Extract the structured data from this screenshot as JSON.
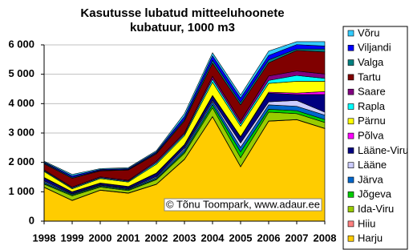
{
  "chart_data": {
    "type": "stacked-area",
    "title": "Kasutusse lubatud mitteeluhoonete kubatuur, 1000 m3",
    "annotation": "© Tõnu Toompark, www.adaur.ee",
    "x": [
      1998,
      1999,
      2000,
      2001,
      2002,
      2003,
      2004,
      2005,
      2006,
      2007,
      2008
    ],
    "ylim": [
      0,
      6000
    ],
    "yticks": [
      0,
      {
        "value": 1000,
        "label": "1 000"
      },
      {
        "value": 2000,
        "label": "2 000"
      },
      {
        "value": 3000,
        "label": "3 000"
      },
      {
        "value": 4000,
        "label": "4 000"
      },
      {
        "value": 5000,
        "label": "5 000"
      },
      {
        "value": 6000,
        "label": "6 000"
      }
    ],
    "grid": true,
    "legend": "right",
    "series": [
      {
        "name": "Harju",
        "color": "#ffcc00",
        "values": [
          1150,
          700,
          1050,
          950,
          1250,
          2100,
          3550,
          1850,
          3400,
          3450,
          3150
        ]
      },
      {
        "name": "Hiiu",
        "color": "#ff8080",
        "values": [
          10,
          10,
          10,
          10,
          10,
          10,
          10,
          10,
          10,
          10,
          10
        ]
      },
      {
        "name": "Ida-Viru",
        "color": "#99cc00",
        "values": [
          100,
          150,
          100,
          80,
          150,
          200,
          300,
          300,
          300,
          200,
          200
        ]
      },
      {
        "name": "Jõgeva",
        "color": "#00cc00",
        "values": [
          30,
          30,
          30,
          30,
          30,
          50,
          100,
          200,
          100,
          100,
          100
        ]
      },
      {
        "name": "Järva",
        "color": "#0066cc",
        "values": [
          50,
          30,
          30,
          30,
          50,
          80,
          100,
          150,
          150,
          150,
          150
        ]
      },
      {
        "name": "Lääne",
        "color": "#ccccff",
        "values": [
          30,
          20,
          20,
          20,
          30,
          50,
          50,
          150,
          100,
          200,
          100
        ]
      },
      {
        "name": "Lääne-Viru",
        "color": "#000080",
        "values": [
          100,
          50,
          50,
          50,
          100,
          100,
          150,
          200,
          300,
          200,
          600
        ]
      },
      {
        "name": "Põlva",
        "color": "#ff00ff",
        "values": [
          20,
          10,
          10,
          10,
          20,
          20,
          20,
          20,
          30,
          50,
          100
        ]
      },
      {
        "name": "Pärnu",
        "color": "#ffff00",
        "values": [
          200,
          100,
          150,
          150,
          300,
          300,
          450,
          350,
          300,
          400,
          350
        ]
      },
      {
        "name": "Rapla",
        "color": "#00ffff",
        "values": [
          30,
          30,
          30,
          30,
          50,
          50,
          100,
          80,
          100,
          200,
          100
        ]
      },
      {
        "name": "Saare",
        "color": "#800080",
        "values": [
          30,
          30,
          30,
          30,
          50,
          50,
          100,
          100,
          150,
          150,
          150
        ]
      },
      {
        "name": "Tartu",
        "color": "#800000",
        "values": [
          200,
          300,
          200,
          350,
          250,
          400,
          450,
          550,
          450,
          700,
          750
        ]
      },
      {
        "name": "Valga",
        "color": "#008080",
        "values": [
          30,
          30,
          20,
          20,
          30,
          50,
          100,
          80,
          100,
          50,
          100
        ]
      },
      {
        "name": "Viljandi",
        "color": "#0000ff",
        "values": [
          30,
          50,
          30,
          30,
          40,
          100,
          150,
          150,
          150,
          150,
          100
        ]
      },
      {
        "name": "Võru",
        "color": "#33ccff",
        "values": [
          30,
          50,
          30,
          30,
          40,
          100,
          100,
          100,
          150,
          100,
          150
        ]
      }
    ]
  }
}
